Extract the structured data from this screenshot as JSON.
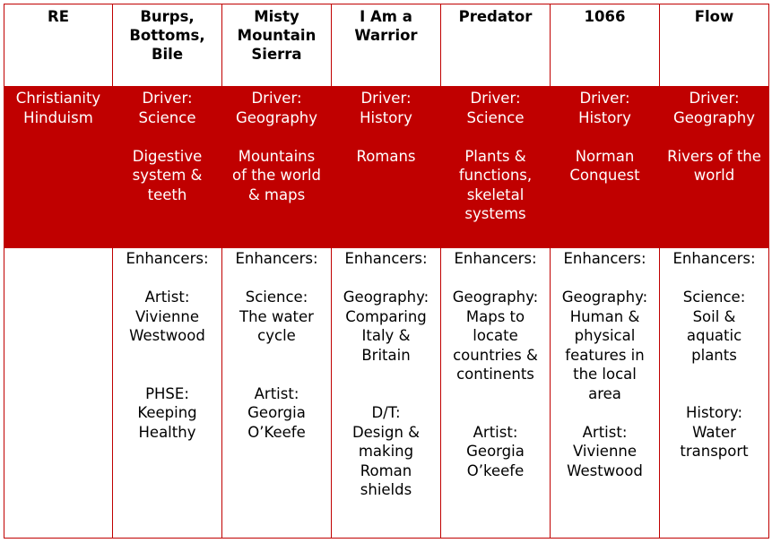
{
  "columns": [
    "RE",
    "Burps, Bottoms, Bile",
    "Misty Mountain Sierra",
    "I Am a Warrior",
    "Predator",
    "1066",
    "Flow"
  ],
  "header": {
    "re": "RE",
    "c1": "Burps,\nBottoms,\nBile",
    "c2": "Misty\nMountain\nSierra",
    "c3": "I Am a\nWarrior",
    "c4": "Predator",
    "c5": "1066",
    "c6": "Flow"
  },
  "drivers": {
    "re": "Christianity\nHinduism",
    "c1": {
      "driver": "Driver:\nScience",
      "topic": "Digestive\nsystem &\nteeth"
    },
    "c2": {
      "driver": "Driver:\nGeography",
      "topic": "Mountains\nof the world\n& maps"
    },
    "c3": {
      "driver": "Driver:\nHistory",
      "topic": "Romans"
    },
    "c4": {
      "driver": "Driver:\nScience",
      "topic": "Plants &\nfunctions,\nskeletal\nsystems"
    },
    "c5": {
      "driver": "Driver:\nHistory",
      "topic": "Norman\nConquest"
    },
    "c6": {
      "driver": "Driver:\nGeography",
      "topic": "Rivers of the\nworld"
    }
  },
  "enhancers": {
    "label": "Enhancers:",
    "c1": {
      "first": "Artist:\nVivienne\nWestwood",
      "second": "PHSE:\nKeeping\nHealthy"
    },
    "c2": {
      "first": "Science:\nThe water\ncycle",
      "second": "Artist:\nGeorgia\nO’Keefe"
    },
    "c3": {
      "first": "Geography:\nComparing\nItaly &\nBritain",
      "second": "D/T:\nDesign &\nmaking\nRoman\nshields"
    },
    "c4": {
      "first": "Geography:\nMaps to\nlocate\ncountries &\ncontinents",
      "second": "Artist:\nGeorgia\nO’keefe"
    },
    "c5": {
      "first": "Geography:\nHuman &\nphysical\nfeatures in\nthe local\narea",
      "second": "Artist:\nVivienne\nWestwood"
    },
    "c6": {
      "first": "Science:\nSoil &\naquatic\nplants",
      "second": "History:\nWater\ntransport"
    }
  },
  "colors": {
    "accent": "#c00000",
    "text_on_accent": "#ffffff",
    "text": "#000000"
  }
}
